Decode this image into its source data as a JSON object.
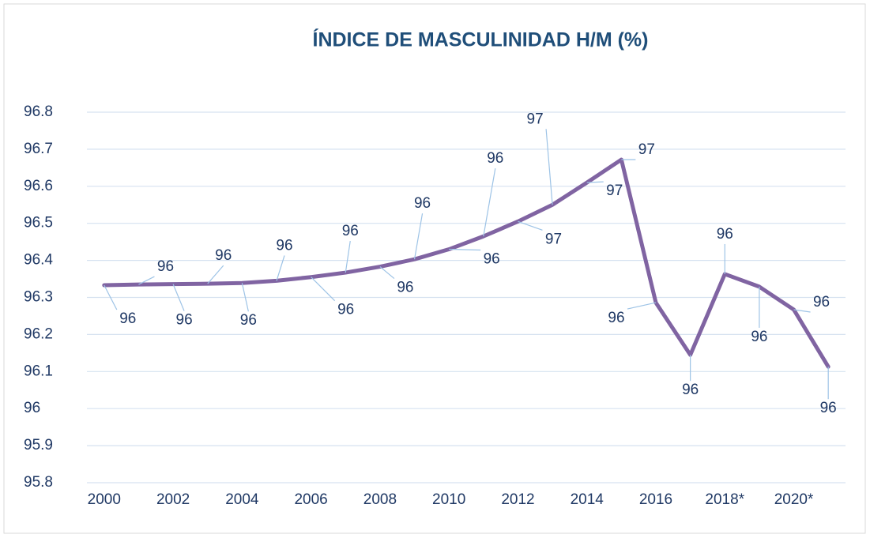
{
  "chart_data": {
    "type": "line",
    "title": "ÍNDICE DE MASCULINIDAD H/M (%)",
    "categories": [
      "2000",
      null,
      "2002",
      null,
      "2004",
      null,
      "2006",
      null,
      "2008",
      null,
      "2010",
      null,
      "2012",
      null,
      "2014",
      null,
      "2016",
      null,
      "2018*",
      null,
      "2020*",
      null
    ],
    "series": [
      {
        "name": "Índice",
        "color": "#8064a2",
        "values": [
          96.333,
          96.335,
          96.336,
          96.337,
          96.339,
          96.345,
          96.355,
          96.367,
          96.383,
          96.403,
          96.43,
          96.465,
          96.505,
          96.55,
          96.61,
          96.672,
          96.286,
          96.145,
          96.363,
          96.329,
          96.267,
          96.113
        ],
        "value_labels": [
          "96",
          "96",
          "96",
          "96",
          "96",
          "96",
          "96",
          "96",
          "96",
          "96",
          "96",
          "96",
          "97",
          "97",
          "97",
          "97",
          "96",
          "96",
          "96",
          "96",
          "96",
          "96"
        ]
      }
    ],
    "ylim": [
      95.8,
      96.8
    ],
    "yticks": [
      95.8,
      95.9,
      96,
      96.1,
      96.2,
      96.3,
      96.4,
      96.5,
      96.6,
      96.7,
      96.8
    ],
    "grid": true
  }
}
